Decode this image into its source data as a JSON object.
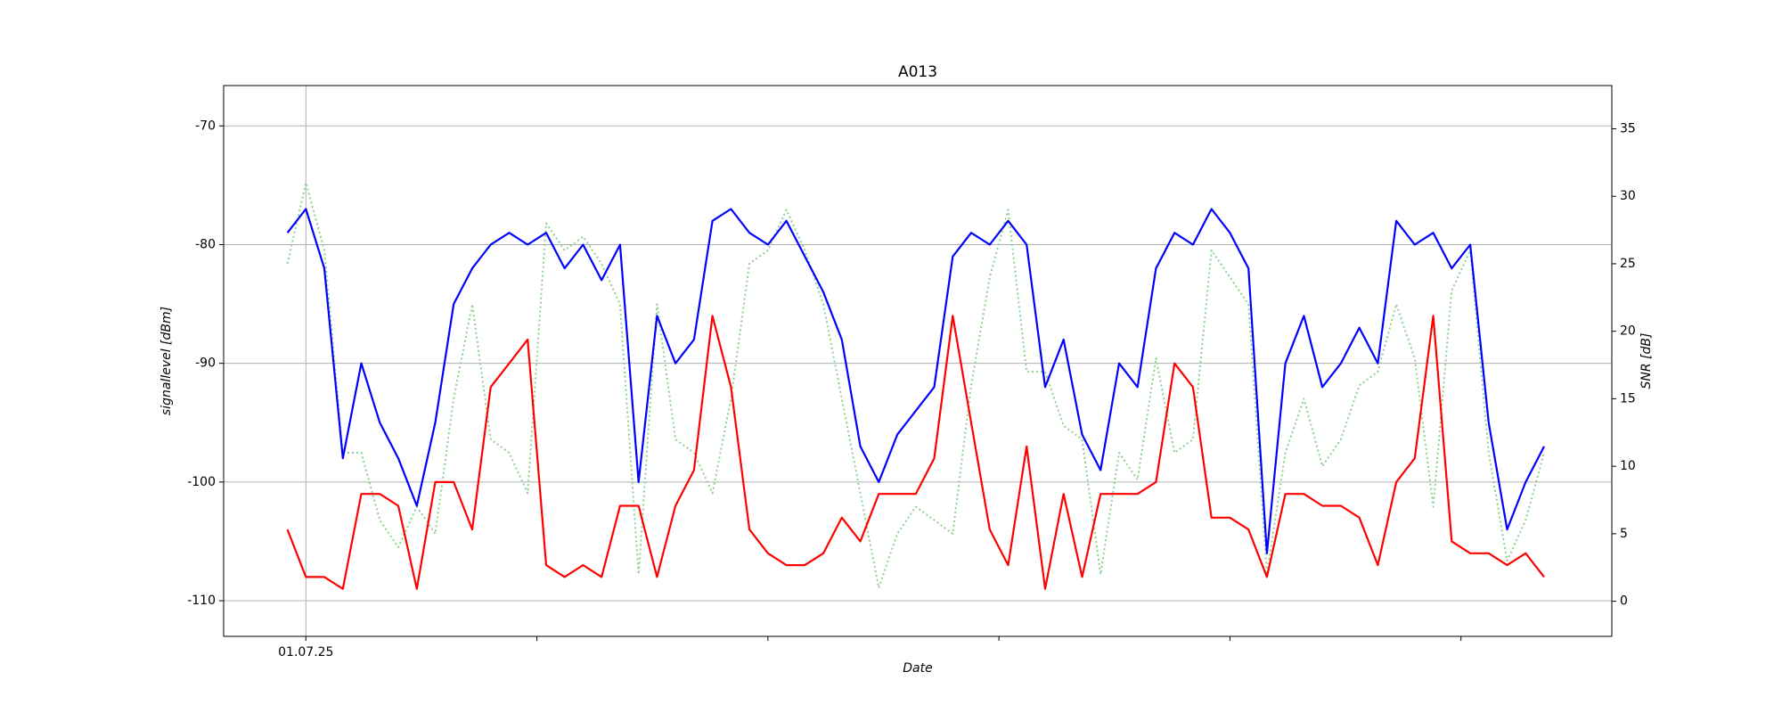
{
  "chart_data": {
    "type": "line",
    "title": "A013",
    "xlabel": "Date",
    "ylabel": "signallevel [dBm]",
    "y2label": "SNR [dB]",
    "grid": true,
    "xlim": [
      -0.356,
      5.653
    ],
    "xticks": [
      {
        "value": 0,
        "label": "01.07.25"
      },
      {
        "value": 1,
        "label": null
      },
      {
        "value": 2,
        "label": null
      },
      {
        "value": 3,
        "label": null
      },
      {
        "value": 4,
        "label": null
      },
      {
        "value": 5,
        "label": null
      }
    ],
    "ylim": [
      -113,
      -66.6
    ],
    "yticks": [
      -110,
      -100,
      -90,
      -80,
      -70
    ],
    "y2lim": [
      -2.6,
      38.2
    ],
    "y2ticks": [
      0,
      5,
      10,
      15,
      20,
      25,
      30,
      35
    ],
    "x": [
      -0.08,
      0,
      0.08,
      0.16,
      0.24,
      0.32,
      0.4,
      0.48,
      0.56,
      0.64,
      0.72,
      0.8,
      0.88,
      0.96,
      1.04,
      1.12,
      1.2,
      1.28,
      1.36,
      1.44,
      1.52,
      1.6,
      1.68,
      1.76,
      1.84,
      1.92,
      2,
      2.08,
      2.16,
      2.24,
      2.32,
      2.4,
      2.48,
      2.56,
      2.64,
      2.72,
      2.8,
      2.88,
      2.96,
      3.04,
      3.12,
      3.2,
      3.28,
      3.36,
      3.44,
      3.52,
      3.6,
      3.68,
      3.76,
      3.84,
      3.92,
      4,
      4.08,
      4.16,
      4.24,
      4.32,
      4.4,
      4.48,
      4.56,
      4.64,
      4.72,
      4.8,
      4.88,
      4.96,
      5.04,
      5.12,
      5.2,
      5.28,
      5.36
    ],
    "series": [
      {
        "color": "#90d090",
        "style": "dotted",
        "axis": "y2",
        "values": [
          25,
          31,
          26,
          11,
          11,
          6,
          4,
          7,
          5,
          15,
          22,
          12,
          11,
          8,
          28,
          26,
          27,
          25,
          22,
          2,
          22,
          12,
          11,
          8,
          15,
          25,
          26,
          29,
          26,
          22,
          15,
          8,
          1,
          5,
          7,
          6,
          5,
          16,
          24,
          29,
          17,
          17,
          13,
          12,
          2,
          11,
          9,
          18,
          11,
          12,
          26,
          24,
          22,
          2,
          11,
          15,
          10,
          12,
          16,
          17,
          22,
          18,
          7,
          23,
          26,
          11,
          3,
          6,
          11
        ]
      },
      {
        "color": "#0000ff",
        "style": "solid",
        "values": [
          -79,
          -77,
          -82,
          -98,
          -90,
          -95,
          -98,
          -102,
          -95,
          -85,
          -82,
          -80,
          -79,
          -80,
          -79,
          -82,
          -80,
          -83,
          -80,
          -100,
          -86,
          -90,
          -88,
          -78,
          -77,
          -79,
          -80,
          -78,
          -81,
          -84,
          -88,
          -97,
          -100,
          -96,
          -94,
          -92,
          -81,
          -79,
          -80,
          -78,
          -80,
          -92,
          -88,
          -96,
          -99,
          -90,
          -92,
          -82,
          -79,
          -80,
          -77,
          -79,
          -82,
          -106,
          -90,
          -86,
          -92,
          -90,
          -87,
          -90,
          -78,
          -80,
          -79,
          -82,
          -80,
          -95,
          -104,
          -100,
          -97
        ]
      },
      {
        "color": "#ff0000",
        "style": "solid",
        "values": [
          -104,
          -108,
          -108,
          -109,
          -101,
          -101,
          -102,
          -109,
          -100,
          -100,
          -104,
          -92,
          -90,
          -88,
          -107,
          -108,
          -107,
          -108,
          -102,
          -102,
          -108,
          -102,
          -99,
          -86,
          -92,
          -104,
          -106,
          -107,
          -107,
          -106,
          -103,
          -105,
          -101,
          -101,
          -101,
          -98,
          -86,
          -95,
          -104,
          -107,
          -97,
          -109,
          -101,
          -108,
          -101,
          -101,
          -101,
          -100,
          -90,
          -92,
          -103,
          -103,
          -104,
          -108,
          -101,
          -101,
          -102,
          -102,
          -103,
          -107,
          -100,
          -98,
          -86,
          -105,
          -106,
          -106,
          -107,
          -106,
          -108
        ]
      }
    ]
  }
}
